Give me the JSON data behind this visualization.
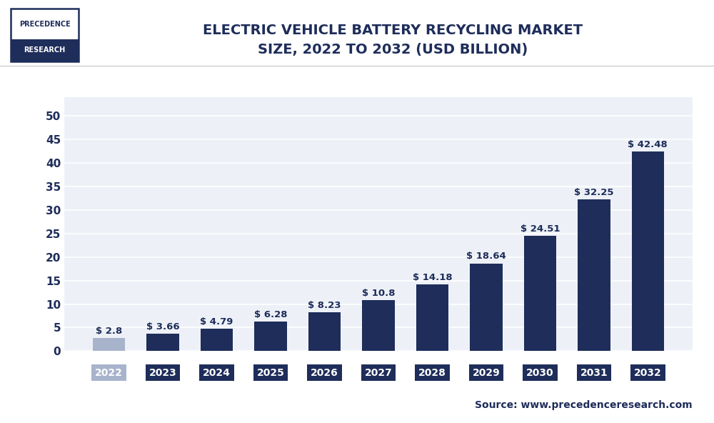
{
  "title_line1": "ELECTRIC VEHICLE BATTERY RECYCLING MARKET",
  "title_line2": "SIZE, 2022 TO 2032 (USD BILLION)",
  "years": [
    "2022",
    "2023",
    "2024",
    "2025",
    "2026",
    "2027",
    "2028",
    "2029",
    "2030",
    "2031",
    "2032"
  ],
  "values": [
    2.8,
    3.66,
    4.79,
    6.28,
    8.23,
    10.8,
    14.18,
    18.64,
    24.51,
    32.25,
    42.48
  ],
  "bar_colors": [
    "#a8b4cc",
    "#1e2d5a",
    "#1e2d5a",
    "#1e2d5a",
    "#1e2d5a",
    "#1e2d5a",
    "#1e2d5a",
    "#1e2d5a",
    "#1e2d5a",
    "#1e2d5a",
    "#1e2d5a"
  ],
  "tick_label_colors": [
    "#a8b4cc",
    "#1e2d5a",
    "#1e2d5a",
    "#1e2d5a",
    "#1e2d5a",
    "#1e2d5a",
    "#1e2d5a",
    "#1e2d5a",
    "#1e2d5a",
    "#1e2d5a",
    "#1e2d5a"
  ],
  "label_values": [
    "$ 2.8",
    "$ 3.66",
    "$ 4.79",
    "$ 6.28",
    "$ 8.23",
    "$ 10.8",
    "$ 14.18",
    "$ 18.64",
    "$ 24.51",
    "$ 32.25",
    "$ 42.48"
  ],
  "yticks": [
    0,
    5,
    10,
    15,
    20,
    25,
    30,
    35,
    40,
    45,
    50
  ],
  "ylim": [
    0,
    54
  ],
  "source_text": "Source: www.precedenceresearch.com",
  "logo_text_line1": "PRECEDENCE",
  "logo_text_line2": "RESEARCH",
  "bg_color": "#ffffff",
  "plot_bg_color": "#edf1f7",
  "grid_color": "#ffffff",
  "title_color": "#1e2d5a",
  "axis_color": "#1e2d5a",
  "label_fontsize": 9.5,
  "title_fontsize": 14,
  "source_fontsize": 10,
  "bar_width": 0.6
}
